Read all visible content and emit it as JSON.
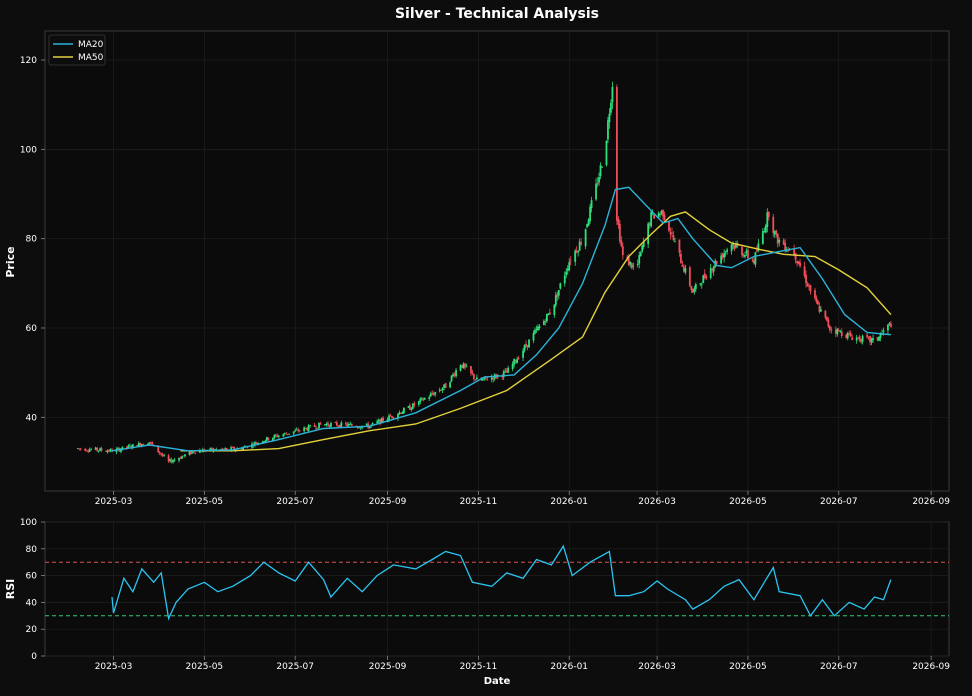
{
  "colors": {
    "background": "#0d0d0d",
    "panel": "#0b0b0b",
    "axis": "#3a3a3a",
    "grid": "#1f1f1f",
    "text": "#ffffff",
    "bull": "#2ee07a",
    "bear": "#f04f5a",
    "ma20": "#2bb3d9",
    "ma50": "#e3d23a",
    "rsi": "#2bc4f0",
    "overbought": "#d9534f",
    "oversold": "#2ecc71"
  },
  "chart_data": [
    {
      "type": "candlestick",
      "title": "Silver - Technical Analysis",
      "ylabel": "Price",
      "ylim": [
        23.5,
        126.5
      ],
      "yticks": [
        "40",
        "60",
        "80",
        "100",
        "120"
      ],
      "xlabel": "",
      "xticks": [
        "2025-03",
        "2025-05",
        "2025-07",
        "2025-09",
        "2025-11",
        "2026-01",
        "2026-03",
        "2026-05",
        "2026-07",
        "2026-09"
      ],
      "legend": {
        "position": "top-left",
        "entries": [
          "MA20",
          "MA50"
        ]
      },
      "grid": true,
      "price_path": {
        "start_date": "2025-02-05",
        "end_date": "2026-08-05",
        "anchors": [
          [
            "2025-02-05",
            33
          ],
          [
            "2025-03-01",
            32.5
          ],
          [
            "2025-03-25",
            34.5
          ],
          [
            "2025-04-07",
            30
          ],
          [
            "2025-04-25",
            32.5
          ],
          [
            "2025-05-25",
            33
          ],
          [
            "2025-06-15",
            35.5
          ],
          [
            "2025-07-20",
            38.5
          ],
          [
            "2025-08-20",
            38
          ],
          [
            "2025-09-15",
            42
          ],
          [
            "2025-10-10",
            47
          ],
          [
            "2025-10-20",
            52
          ],
          [
            "2025-11-01",
            48
          ],
          [
            "2025-11-20",
            50
          ],
          [
            "2025-12-05",
            57
          ],
          [
            "2025-12-20",
            64
          ],
          [
            "2026-01-01",
            75
          ],
          [
            "2026-01-10",
            80
          ],
          [
            "2026-01-18",
            90
          ],
          [
            "2026-01-25",
            100
          ],
          [
            "2026-01-30",
            115
          ],
          [
            "2026-02-02",
            85
          ],
          [
            "2026-02-06",
            76
          ],
          [
            "2026-02-15",
            73
          ],
          [
            "2026-02-25",
            85
          ],
          [
            "2026-03-05",
            86
          ],
          [
            "2026-03-15",
            77
          ],
          [
            "2026-03-25",
            68
          ],
          [
            "2026-04-05",
            73
          ],
          [
            "2026-04-20",
            79
          ],
          [
            "2026-05-05",
            75
          ],
          [
            "2026-05-15",
            86
          ],
          [
            "2026-05-20",
            80
          ],
          [
            "2026-06-01",
            77
          ],
          [
            "2026-06-15",
            66
          ],
          [
            "2026-06-25",
            60
          ],
          [
            "2026-07-10",
            58
          ],
          [
            "2026-07-25",
            57
          ],
          [
            "2026-08-05",
            61
          ]
        ]
      },
      "ma20": {
        "name": "MA20",
        "points": [
          [
            "2025-02-28",
            32.5
          ],
          [
            "2025-03-25",
            33.8
          ],
          [
            "2025-04-20",
            32.5
          ],
          [
            "2025-05-20",
            32.7
          ],
          [
            "2025-06-20",
            35
          ],
          [
            "2025-07-20",
            37.5
          ],
          [
            "2025-08-20",
            38
          ],
          [
            "2025-09-20",
            41
          ],
          [
            "2025-10-20",
            46
          ],
          [
            "2025-11-05",
            49
          ],
          [
            "2025-11-25",
            49.5
          ],
          [
            "2025-12-10",
            54
          ],
          [
            "2025-12-25",
            60
          ],
          [
            "2026-01-10",
            70
          ],
          [
            "2026-01-25",
            83
          ],
          [
            "2026-02-01",
            91
          ],
          [
            "2026-02-10",
            91.5
          ],
          [
            "2026-02-20",
            88
          ],
          [
            "2026-03-05",
            83.5
          ],
          [
            "2026-03-15",
            84.5
          ],
          [
            "2026-03-25",
            80
          ],
          [
            "2026-04-10",
            74
          ],
          [
            "2026-04-20",
            73.5
          ],
          [
            "2026-05-05",
            76
          ],
          [
            "2026-05-20",
            77
          ],
          [
            "2026-06-05",
            78
          ],
          [
            "2026-06-20",
            71
          ],
          [
            "2026-07-05",
            63
          ],
          [
            "2026-07-20",
            59
          ],
          [
            "2026-08-05",
            58.5
          ]
        ]
      },
      "ma50": {
        "name": "MA50",
        "points": [
          [
            "2025-04-15",
            32.5
          ],
          [
            "2025-05-20",
            32.5
          ],
          [
            "2025-06-20",
            33
          ],
          [
            "2025-07-20",
            35
          ],
          [
            "2025-08-20",
            37
          ],
          [
            "2025-09-20",
            38.5
          ],
          [
            "2025-10-20",
            42
          ],
          [
            "2025-11-20",
            46
          ],
          [
            "2025-12-20",
            53
          ],
          [
            "2026-01-10",
            58
          ],
          [
            "2026-01-25",
            68
          ],
          [
            "2026-02-10",
            76
          ],
          [
            "2026-02-25",
            81
          ],
          [
            "2026-03-10",
            85
          ],
          [
            "2026-03-20",
            86
          ],
          [
            "2026-04-05",
            82
          ],
          [
            "2026-04-20",
            79
          ],
          [
            "2026-05-10",
            77.5
          ],
          [
            "2026-05-25",
            76.5
          ],
          [
            "2026-06-15",
            76
          ],
          [
            "2026-07-01",
            73
          ],
          [
            "2026-07-20",
            69
          ],
          [
            "2026-08-05",
            63
          ]
        ]
      }
    },
    {
      "type": "line",
      "ylabel": "RSI",
      "xlabel": "Date",
      "ylim": [
        0,
        100
      ],
      "yticks": [
        "0",
        "20",
        "40",
        "60",
        "80",
        "100"
      ],
      "xticks": [
        "2025-03",
        "2025-05",
        "2025-07",
        "2025-09",
        "2025-11",
        "2026-01",
        "2026-03",
        "2026-05",
        "2026-07",
        "2026-09"
      ],
      "overbought": 70,
      "oversold": 30,
      "grid": true,
      "series": [
        {
          "points": [
            [
              "2025-02-28",
              44
            ],
            [
              "2025-03-01",
              32
            ],
            [
              "2025-03-08",
              58
            ],
            [
              "2025-03-14",
              48
            ],
            [
              "2025-03-20",
              65
            ],
            [
              "2025-03-28",
              55
            ],
            [
              "2025-04-02",
              62
            ],
            [
              "2025-04-07",
              28
            ],
            [
              "2025-04-12",
              40
            ],
            [
              "2025-04-20",
              50
            ],
            [
              "2025-05-01",
              55
            ],
            [
              "2025-05-10",
              48
            ],
            [
              "2025-05-20",
              52
            ],
            [
              "2025-06-01",
              60
            ],
            [
              "2025-06-10",
              70
            ],
            [
              "2025-06-20",
              62
            ],
            [
              "2025-07-01",
              56
            ],
            [
              "2025-07-10",
              70
            ],
            [
              "2025-07-20",
              57
            ],
            [
              "2025-07-25",
              44
            ],
            [
              "2025-08-05",
              58
            ],
            [
              "2025-08-15",
              48
            ],
            [
              "2025-08-25",
              60
            ],
            [
              "2025-09-05",
              68
            ],
            [
              "2025-09-20",
              65
            ],
            [
              "2025-10-01",
              72
            ],
            [
              "2025-10-10",
              78
            ],
            [
              "2025-10-20",
              75
            ],
            [
              "2025-10-28",
              55
            ],
            [
              "2025-11-10",
              52
            ],
            [
              "2025-11-20",
              62
            ],
            [
              "2025-12-01",
              58
            ],
            [
              "2025-12-10",
              72
            ],
            [
              "2025-12-20",
              68
            ],
            [
              "2025-12-28",
              82
            ],
            [
              "2026-01-03",
              60
            ],
            [
              "2026-01-15",
              70
            ],
            [
              "2026-01-28",
              78
            ],
            [
              "2026-02-01",
              45
            ],
            [
              "2026-02-10",
              45
            ],
            [
              "2026-02-20",
              48
            ],
            [
              "2026-03-01",
              56
            ],
            [
              "2026-03-08",
              50
            ],
            [
              "2026-03-20",
              42
            ],
            [
              "2026-03-25",
              35
            ],
            [
              "2026-04-05",
              42
            ],
            [
              "2026-04-15",
              52
            ],
            [
              "2026-04-25",
              57
            ],
            [
              "2026-05-05",
              42
            ],
            [
              "2026-05-12",
              55
            ],
            [
              "2026-05-18",
              66
            ],
            [
              "2026-05-22",
              48
            ],
            [
              "2026-06-05",
              45
            ],
            [
              "2026-06-12",
              30
            ],
            [
              "2026-06-20",
              42
            ],
            [
              "2026-06-28",
              30
            ],
            [
              "2026-07-08",
              40
            ],
            [
              "2026-07-18",
              35
            ],
            [
              "2026-07-25",
              44
            ],
            [
              "2026-07-31",
              42
            ],
            [
              "2026-08-05",
              57
            ]
          ]
        }
      ]
    }
  ]
}
